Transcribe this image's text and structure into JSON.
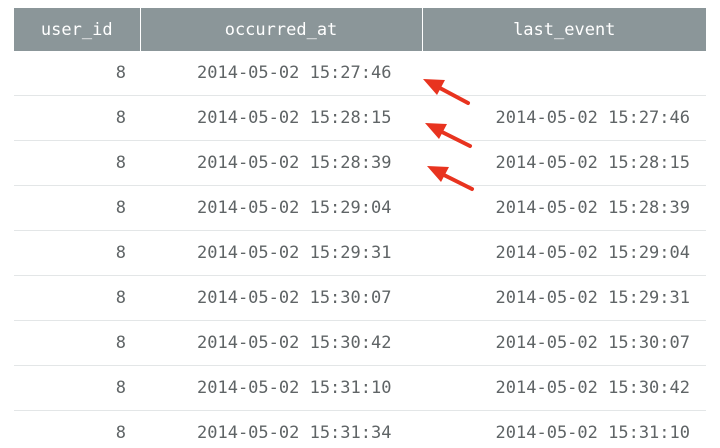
{
  "table": {
    "columns": [
      "user_id",
      "occurred_at",
      "last_event"
    ],
    "rows": [
      {
        "user_id": "8",
        "occurred_at": "2014-05-02 15:27:46",
        "last_event": ""
      },
      {
        "user_id": "8",
        "occurred_at": "2014-05-02 15:28:15",
        "last_event": "2014-05-02 15:27:46"
      },
      {
        "user_id": "8",
        "occurred_at": "2014-05-02 15:28:39",
        "last_event": "2014-05-02 15:28:15"
      },
      {
        "user_id": "8",
        "occurred_at": "2014-05-02 15:29:04",
        "last_event": "2014-05-02 15:28:39"
      },
      {
        "user_id": "8",
        "occurred_at": "2014-05-02 15:29:31",
        "last_event": "2014-05-02 15:29:04"
      },
      {
        "user_id": "8",
        "occurred_at": "2014-05-02 15:30:07",
        "last_event": "2014-05-02 15:29:31"
      },
      {
        "user_id": "8",
        "occurred_at": "2014-05-02 15:30:42",
        "last_event": "2014-05-02 15:30:07"
      },
      {
        "user_id": "8",
        "occurred_at": "2014-05-02 15:31:10",
        "last_event": "2014-05-02 15:30:42"
      },
      {
        "user_id": "8",
        "occurred_at": "2014-05-02 15:31:34",
        "last_event": "2014-05-02 15:31:10"
      }
    ]
  },
  "colors": {
    "header_bg": "#8b9699",
    "header_text": "#ffffff",
    "cell_text": "#5f6466",
    "row_divider": "#e3e6e7",
    "arrow": "#e8331f"
  },
  "annotations": {
    "arrow_icon": "red-arrow-icon",
    "count": 3
  }
}
